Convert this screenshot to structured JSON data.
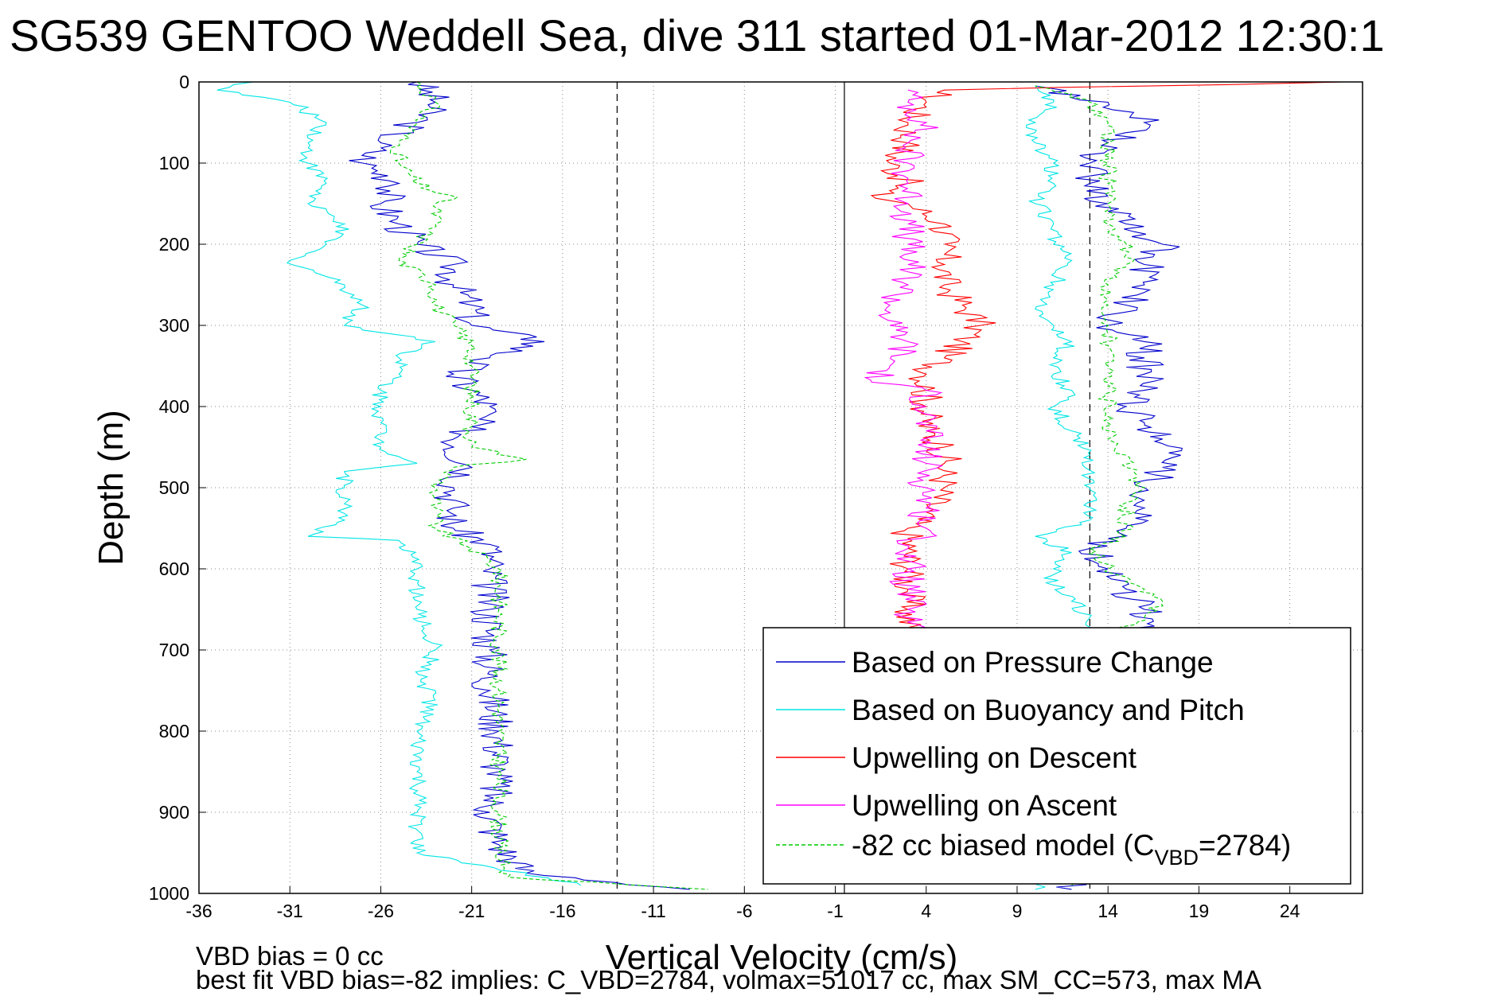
{
  "chart_data": {
    "type": "line",
    "title": "SG539 GENTOO Weddell Sea, dive 311 started 01-Mar-2012 12:30:1",
    "xlabel": "Vertical Velocity (cm/s)",
    "ylabel": "Depth (m)",
    "xlim": [
      -36,
      28
    ],
    "ylim": [
      0,
      1000
    ],
    "y_reversed": true,
    "grid": true,
    "x_ticks": [
      "-36",
      "-31",
      "-26",
      "-21",
      "-16",
      "-11",
      "-6",
      "-1",
      "4",
      "9",
      "14",
      "19",
      "24"
    ],
    "y_ticks": [
      "0",
      "100",
      "200",
      "300",
      "400",
      "500",
      "600",
      "700",
      "800",
      "900",
      "1000"
    ],
    "dashed_lines_x": [
      -13,
      13
    ],
    "solid_line_x": -0.5,
    "legend_position": "bottom-right",
    "colors": {
      "pressure": "#0000cc",
      "buoyancy": "#00e5e5",
      "descent": "#ff0000",
      "ascent": "#ff00ff",
      "model": "#00cc00"
    },
    "series": [
      {
        "name": "Based on Pressure Change",
        "key": "pressure",
        "color": "#0000cc",
        "dive": {
          "depth": [
            0,
            25,
            50,
            75,
            100,
            125,
            150,
            175,
            200,
            225,
            250,
            275,
            300,
            320,
            340,
            360,
            380,
            400,
            425,
            450,
            475,
            500,
            525,
            550,
            570,
            600,
            650,
            700,
            750,
            800,
            850,
            900,
            940,
            975,
            995
          ],
          "velocity": [
            -24,
            -23,
            -24,
            -26,
            -27,
            -25,
            -26,
            -25,
            -24,
            -22,
            -22,
            -21,
            -21,
            -17,
            -20,
            -22,
            -21,
            -20,
            -21,
            -22,
            -21,
            -22,
            -22,
            -22,
            -20,
            -20,
            -20,
            -20,
            -20,
            -19.5,
            -19.5,
            -20,
            -19.5,
            -18,
            -9
          ]
        },
        "climb": {
          "depth": [
            995,
            975,
            950,
            900,
            850,
            800,
            750,
            700,
            650,
            625,
            600,
            575,
            550,
            525,
            500,
            475,
            460,
            440,
            420,
            400,
            380,
            360,
            340,
            320,
            300,
            275,
            250,
            225,
            200,
            175,
            150,
            125,
            100,
            75,
            50,
            25,
            5
          ],
          "velocity": [
            12,
            13,
            14,
            15,
            16,
            16,
            16,
            16,
            16,
            15,
            14,
            13,
            15,
            16,
            16,
            17,
            18,
            17,
            16,
            15,
            16,
            16,
            16,
            16,
            14,
            15,
            16,
            16,
            17,
            15,
            14,
            13,
            13,
            14,
            16,
            14,
            10
          ]
        }
      },
      {
        "name": "Based on Buoyancy and Pitch",
        "key": "buoyancy",
        "color": "#00e5e5",
        "dive": {
          "depth": [
            0,
            10,
            25,
            50,
            75,
            100,
            125,
            150,
            175,
            200,
            220,
            250,
            275,
            300,
            320,
            340,
            360,
            380,
            400,
            420,
            450,
            470,
            480,
            500,
            520,
            540,
            560,
            565,
            600,
            650,
            700,
            745,
            750,
            800,
            850,
            900,
            950,
            990
          ],
          "velocity": [
            -33,
            -35,
            -31,
            -29,
            -30,
            -30,
            -29,
            -30,
            -28,
            -29,
            -31,
            -28,
            -27,
            -28,
            -23,
            -25,
            -25,
            -26,
            -26,
            -26,
            -26,
            -24,
            -28,
            -28,
            -28,
            -28,
            -30,
            -25,
            -24,
            -24,
            -23,
            -24,
            -23,
            -24,
            -24,
            -24,
            -24,
            -15
          ]
        },
        "climb": {
          "depth": [
            995,
            975,
            950,
            900,
            850,
            800,
            750,
            700,
            660,
            640,
            620,
            600,
            580,
            560,
            540,
            500,
            460,
            430,
            400,
            380,
            360,
            340,
            320,
            300,
            280,
            250,
            220,
            200,
            175,
            150,
            125,
            100,
            75,
            50,
            25,
            5
          ],
          "velocity": [
            10,
            11,
            12,
            13,
            13,
            13,
            13,
            13,
            13,
            12,
            11,
            11,
            12,
            10,
            13,
            13,
            13,
            12,
            11,
            12,
            11,
            11,
            12,
            11,
            10,
            11,
            12,
            11,
            11,
            10,
            11,
            11,
            10,
            10,
            11,
            10
          ]
        }
      },
      {
        "name": "Upwelling on Descent",
        "key": "descent",
        "color": "#ff0000",
        "values": {
          "depth": [
            0,
            10,
            25,
            50,
            75,
            100,
            125,
            140,
            150,
            175,
            200,
            225,
            250,
            275,
            300,
            320,
            340,
            360,
            380,
            400,
            430,
            450,
            470,
            500,
            530,
            550,
            575,
            600,
            625,
            650,
            675
          ],
          "velocity": [
            27,
            5,
            4,
            3,
            3,
            2,
            3,
            1,
            3,
            5,
            5,
            5,
            5,
            6,
            7,
            6,
            5,
            4,
            4,
            4,
            4,
            5,
            5,
            5,
            4,
            3,
            3,
            3,
            3,
            3,
            3
          ]
        }
      },
      {
        "name": "Upwelling on Ascent",
        "key": "ascent",
        "color": "#ff00ff",
        "values": {
          "depth": [
            10,
            25,
            50,
            75,
            100,
            125,
            150,
            175,
            200,
            225,
            250,
            275,
            300,
            320,
            350,
            370,
            380,
            400,
            430,
            450,
            470,
            500,
            525,
            550,
            575,
            600,
            625,
            650,
            675
          ],
          "velocity": [
            3,
            3,
            4,
            3,
            3,
            3,
            3,
            3,
            3,
            3,
            3,
            2,
            2,
            3,
            2,
            1,
            4,
            4,
            4,
            4,
            4,
            4,
            4,
            4,
            3,
            3,
            3,
            3,
            3
          ]
        }
      },
      {
        "name": "-82 cc biased model (C_VBD=2784)",
        "key": "model",
        "color": "#00cc00",
        "dashed": true,
        "dive": {
          "depth": [
            0,
            25,
            50,
            75,
            100,
            125,
            145,
            150,
            175,
            200,
            220,
            250,
            275,
            300,
            325,
            350,
            375,
            400,
            425,
            450,
            465,
            475,
            500,
            525,
            550,
            575,
            600,
            650,
            700,
            750,
            800,
            850,
            900,
            950,
            980,
            995
          ],
          "velocity": [
            -24,
            -23,
            -24,
            -25,
            -25,
            -24,
            -22,
            -23,
            -23,
            -24,
            -25,
            -23,
            -23,
            -22,
            -21,
            -21,
            -21,
            -21,
            -21,
            -21,
            -18,
            -22,
            -23,
            -23,
            -23,
            -21,
            -19.5,
            -19.5,
            -19.5,
            -19.5,
            -19.5,
            -19.5,
            -19.5,
            -19.5,
            -19,
            -8
          ]
        },
        "climb": {
          "depth": [
            990,
            975,
            950,
            900,
            850,
            800,
            750,
            700,
            680,
            660,
            640,
            625,
            610,
            600,
            575,
            560,
            525,
            500,
            475,
            460,
            440,
            420,
            400,
            375,
            350,
            325,
            300,
            275,
            250,
            225,
            200,
            175,
            150,
            125,
            100,
            75,
            50,
            25,
            15,
            5
          ],
          "velocity": [
            12,
            13,
            13,
            14,
            14,
            14,
            14,
            14,
            14,
            16,
            17,
            16,
            15,
            14,
            13,
            15,
            15,
            16,
            15,
            15,
            14,
            14,
            14,
            14,
            14,
            14,
            14,
            14,
            14,
            15,
            15,
            14,
            14,
            14,
            14,
            14,
            14,
            13,
            12,
            10
          ]
        }
      }
    ],
    "legend": [
      {
        "label": "Based on Pressure Change",
        "key": "pressure"
      },
      {
        "label": "Based on Buoyancy and Pitch",
        "key": "buoyancy"
      },
      {
        "label": "Upwelling on Descent",
        "key": "descent"
      },
      {
        "label": "Upwelling on Ascent",
        "key": "ascent"
      },
      {
        "label": "-82 cc biased model (C",
        "sub": "VBD",
        "suffix": "=2784)",
        "key": "model",
        "dashed": true
      }
    ],
    "footnotes": [
      "VBD bias = 0 cc",
      "best fit VBD bias=-82 implies: C_VBD=2784, volmax=51017 cc, max SM_CC=573, max MA"
    ]
  }
}
